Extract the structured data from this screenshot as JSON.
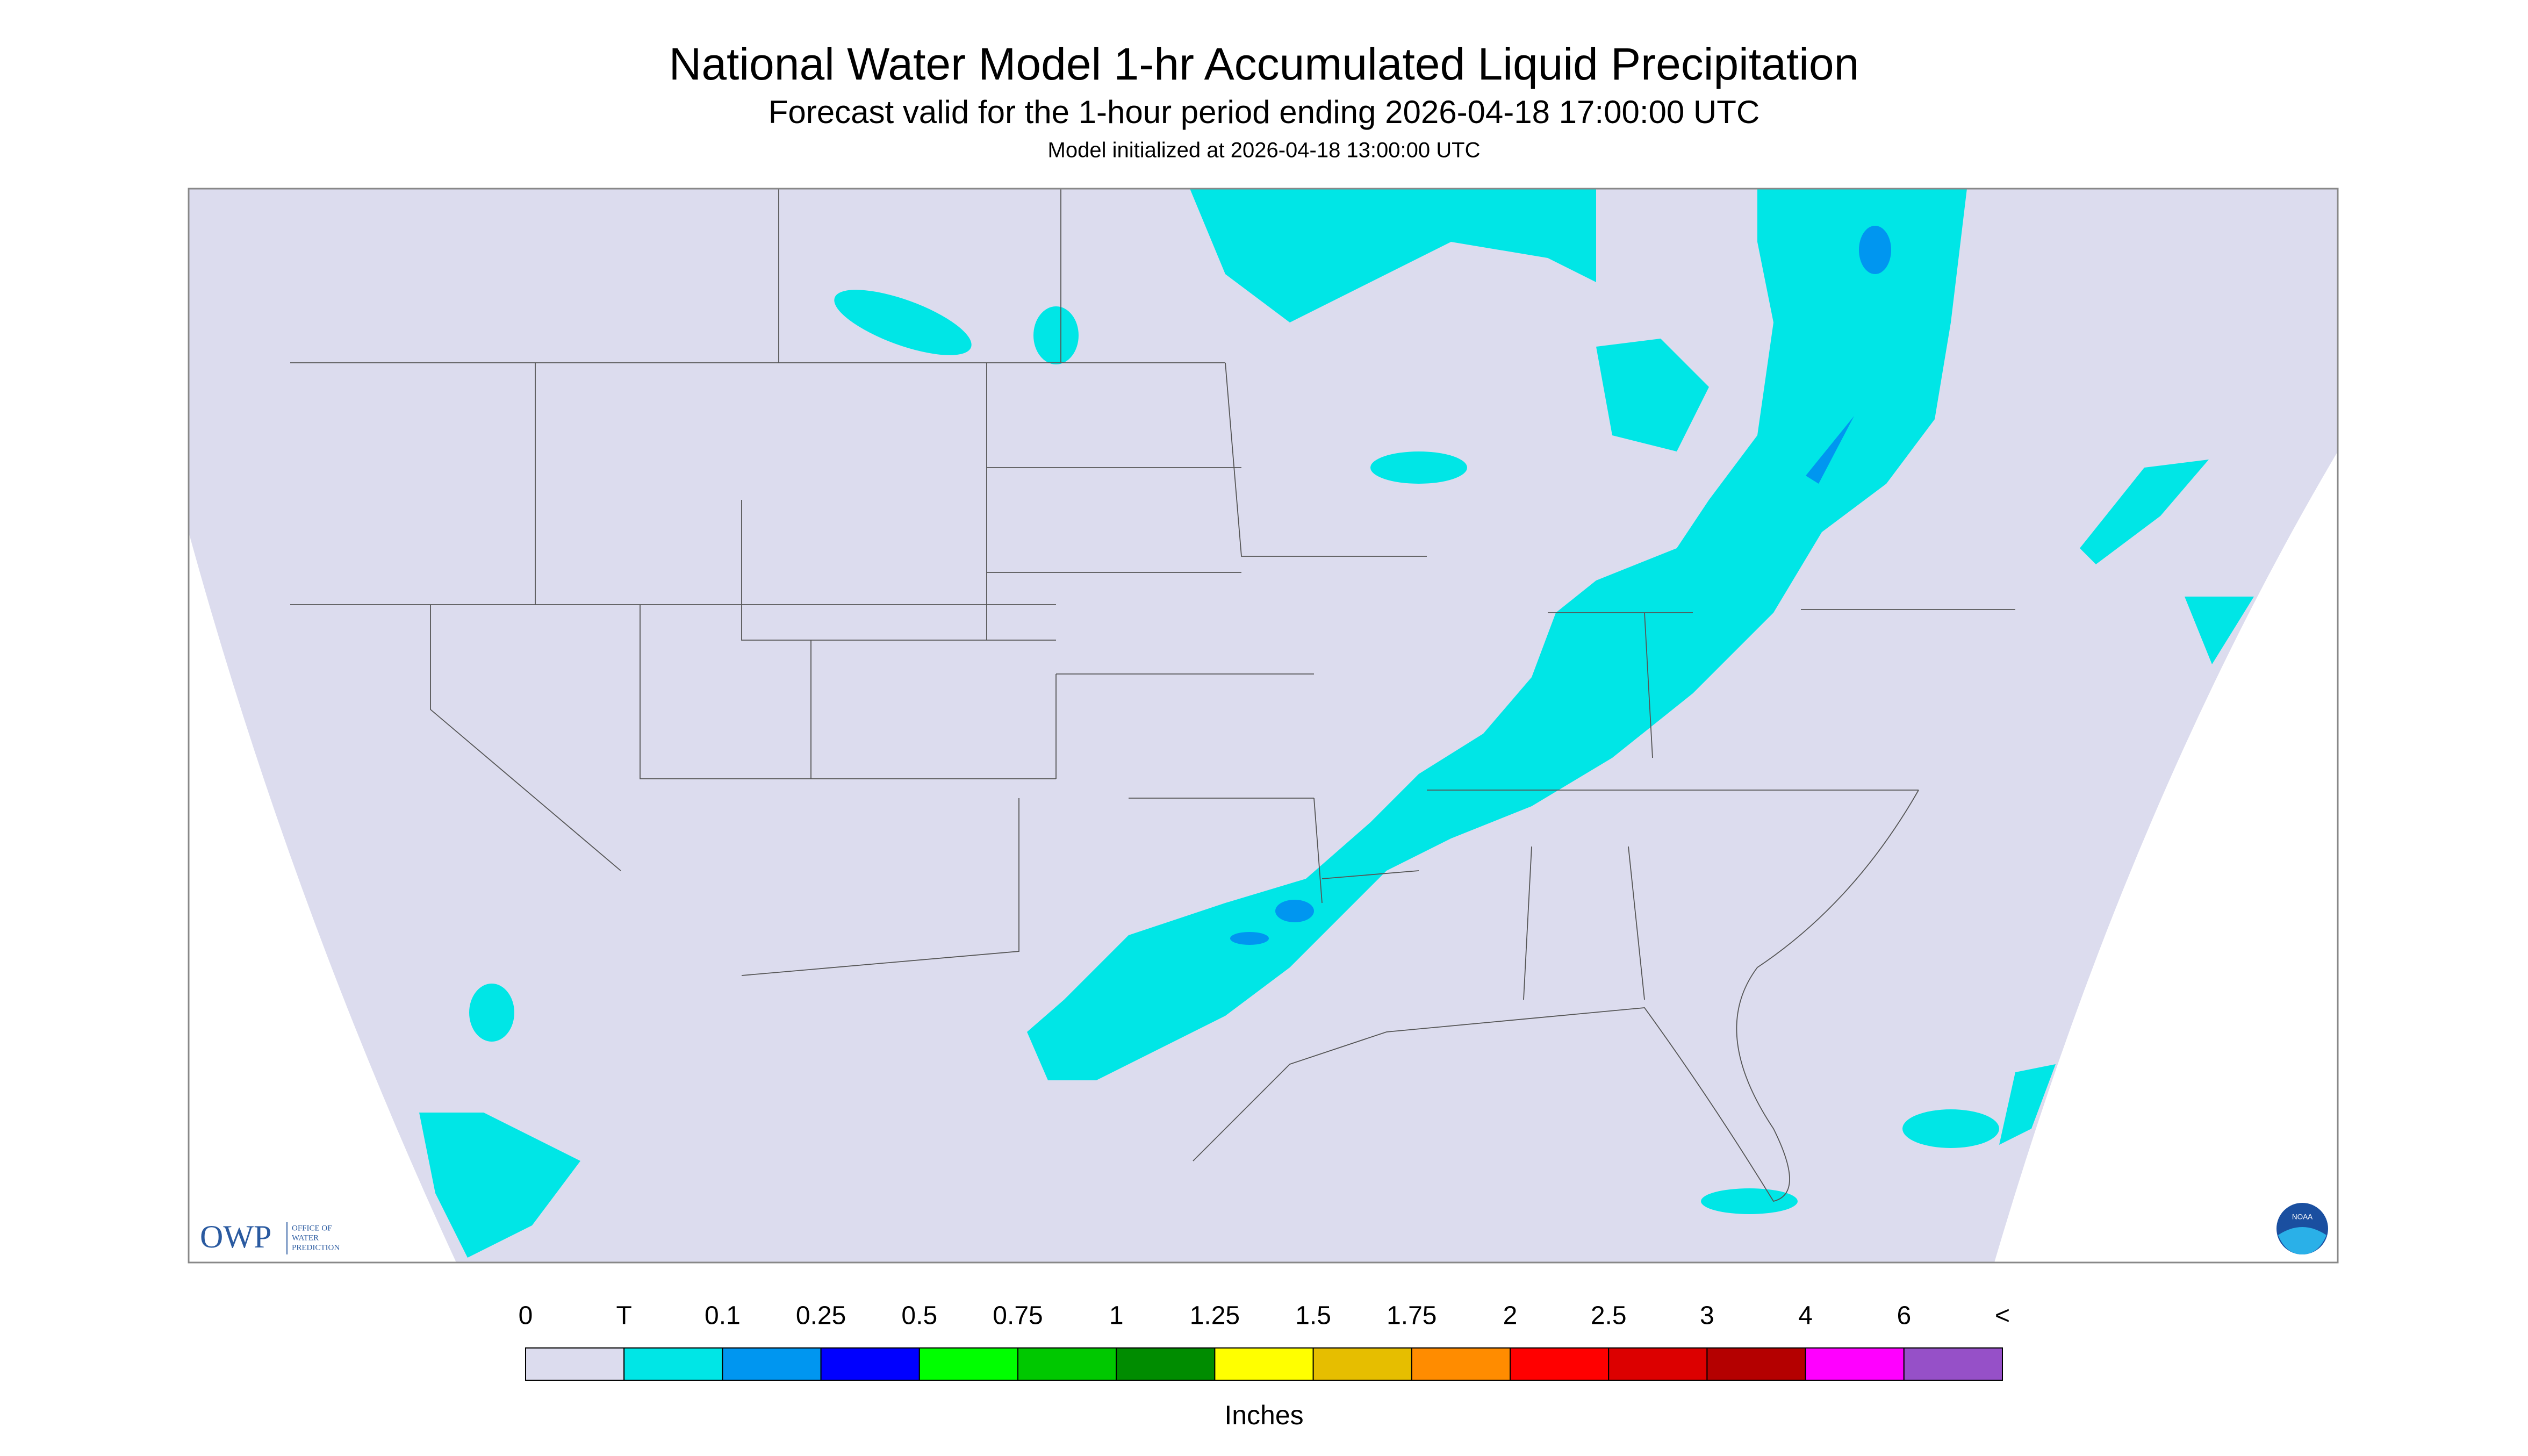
{
  "header": {
    "title": "National Water Model 1-hr Accumulated Liquid Precipitation",
    "subtitle": "Forecast valid for the 1-hour period ending 2026-04-18 17:00:00 UTC",
    "initialized": "Model initialized at 2026-04-18 13:00:00 UTC"
  },
  "legend": {
    "labels": [
      0,
      "T",
      0.1,
      0.25,
      0.5,
      0.75,
      1,
      1.25,
      1.5,
      1.75,
      2,
      2.5,
      3,
      4,
      6,
      "<"
    ],
    "colors": [
      "#dcdcee",
      "#00e6e6",
      "#0096f0",
      "#0000ff",
      "#00ff00",
      "#00c800",
      "#008c00",
      "#ffff00",
      "#e6be00",
      "#ff8c00",
      "#ff0000",
      "#dc0000",
      "#b40000",
      "#ff00ff",
      "#9650c8"
    ],
    "unit": "Inches"
  },
  "logos": {
    "owp": "OWP",
    "owp_lines": [
      "OFFICE OF",
      "WATER",
      "PREDICTION"
    ],
    "noaa": "NOAA"
  }
}
